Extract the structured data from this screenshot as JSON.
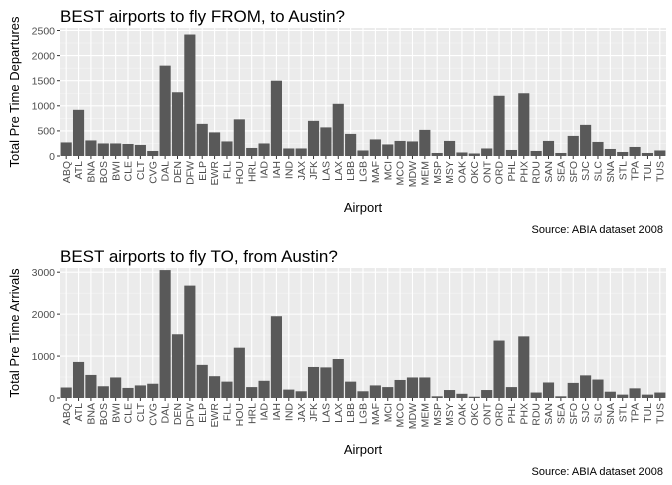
{
  "chart_data": [
    {
      "type": "bar",
      "title": "BEST airports to fly FROM, to Austin?",
      "xlabel": "Airport",
      "ylabel": "Total Pre Time Departures",
      "caption": "Source: ABIA dataset 2008",
      "ylim": [
        0,
        2550
      ],
      "yticks": [
        0,
        500,
        1000,
        1500,
        2000,
        2500
      ],
      "grid": true,
      "categories": [
        "ABQ",
        "ATL",
        "BNA",
        "BOS",
        "BWI",
        "CLE",
        "CLT",
        "CVG",
        "DAL",
        "DEN",
        "DFW",
        "ELP",
        "EWR",
        "FLL",
        "HOU",
        "HRL",
        "IAD",
        "IAH",
        "IND",
        "JAX",
        "JFK",
        "LAS",
        "LAX",
        "LBB",
        "LGB",
        "MAF",
        "MCI",
        "MCO",
        "MDW",
        "MEM",
        "MSP",
        "MSY",
        "OAK",
        "OKC",
        "ONT",
        "ORD",
        "PHL",
        "PHX",
        "RDU",
        "SAN",
        "SEA",
        "SFO",
        "SJC",
        "SLC",
        "SNA",
        "STL",
        "TPA",
        "TUL",
        "TUS"
      ],
      "values": [
        270,
        920,
        310,
        250,
        250,
        240,
        220,
        100,
        1800,
        1270,
        2420,
        640,
        470,
        290,
        730,
        160,
        250,
        1500,
        150,
        150,
        700,
        570,
        1040,
        440,
        110,
        330,
        230,
        300,
        290,
        520,
        60,
        300,
        70,
        50,
        150,
        1200,
        120,
        1250,
        100,
        300,
        60,
        400,
        620,
        280,
        140,
        80,
        180,
        60,
        110
      ]
    },
    {
      "type": "bar",
      "title": "BEST airports to fly TO, from Austin?",
      "xlabel": "Airport",
      "ylabel": "Total Pre Time Arrivals",
      "caption": "Source: ABIA dataset 2008",
      "ylim": [
        0,
        3100
      ],
      "yticks": [
        0,
        1000,
        2000,
        3000
      ],
      "grid": true,
      "categories": [
        "ABQ",
        "ATL",
        "BNA",
        "BOS",
        "BWI",
        "CLE",
        "CLT",
        "CVG",
        "DAL",
        "DEN",
        "DFW",
        "ELP",
        "EWR",
        "FLL",
        "HOU",
        "HRL",
        "IAD",
        "IAH",
        "IND",
        "JAX",
        "JFK",
        "LAS",
        "LAX",
        "LBB",
        "LGB",
        "MAF",
        "MCI",
        "MCO",
        "MDW",
        "MEM",
        "MSP",
        "MSY",
        "OAK",
        "OKC",
        "ONT",
        "ORD",
        "PHL",
        "PHX",
        "RDU",
        "SAN",
        "SEA",
        "SFO",
        "SJC",
        "SLC",
        "SNA",
        "STL",
        "TPA",
        "TUL",
        "TUS"
      ],
      "values": [
        250,
        860,
        550,
        280,
        490,
        240,
        300,
        340,
        3050,
        1520,
        2680,
        790,
        520,
        390,
        1200,
        260,
        410,
        1950,
        200,
        160,
        740,
        730,
        930,
        390,
        160,
        300,
        260,
        430,
        490,
        490,
        40,
        190,
        100,
        30,
        190,
        1370,
        260,
        1470,
        130,
        370,
        40,
        360,
        540,
        440,
        150,
        80,
        230,
        80,
        130
      ]
    }
  ]
}
